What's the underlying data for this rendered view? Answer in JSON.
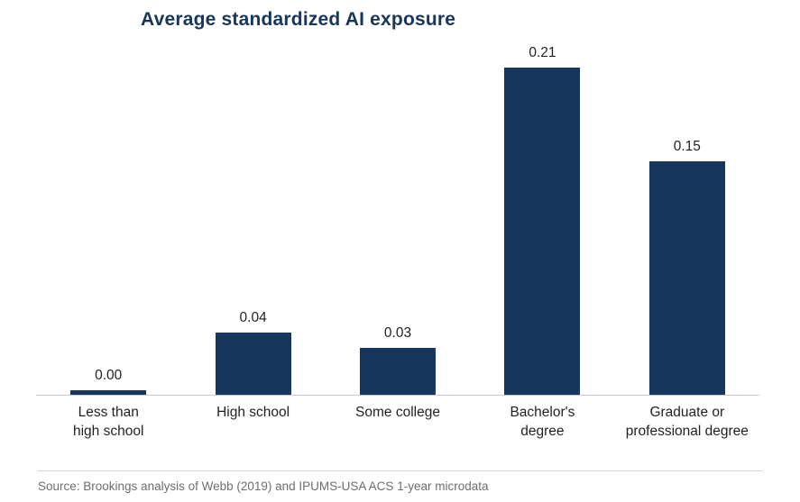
{
  "title": "Average standardized AI exposure",
  "source": "Source: Brookings analysis of Webb (2019) and IPUMS-USA ACS 1-year microdata",
  "colors": {
    "bar": "#17365d",
    "title": "#17365d",
    "category_text": "#231f20",
    "value_text": "#231f20",
    "source_text": "#6d6e71",
    "baseline": "#c9c9c9"
  },
  "chart_data": {
    "type": "bar",
    "title": "Average standardized AI exposure",
    "categories": [
      "Less than\nhigh school",
      "High school",
      "Some college",
      "Bachelor's\ndegree",
      "Graduate or\nprofessional degree"
    ],
    "values": [
      0.0,
      0.04,
      0.03,
      0.21,
      0.15
    ],
    "value_labels": [
      "0.00",
      "0.04",
      "0.03",
      "0.21",
      "0.15"
    ],
    "xlabel": "",
    "ylabel": "",
    "ylim": [
      0,
      0.22
    ],
    "grid": false,
    "legend": false,
    "source": "Source: Brookings analysis of Webb (2019) and IPUMS-USA ACS 1-year microdata"
  }
}
